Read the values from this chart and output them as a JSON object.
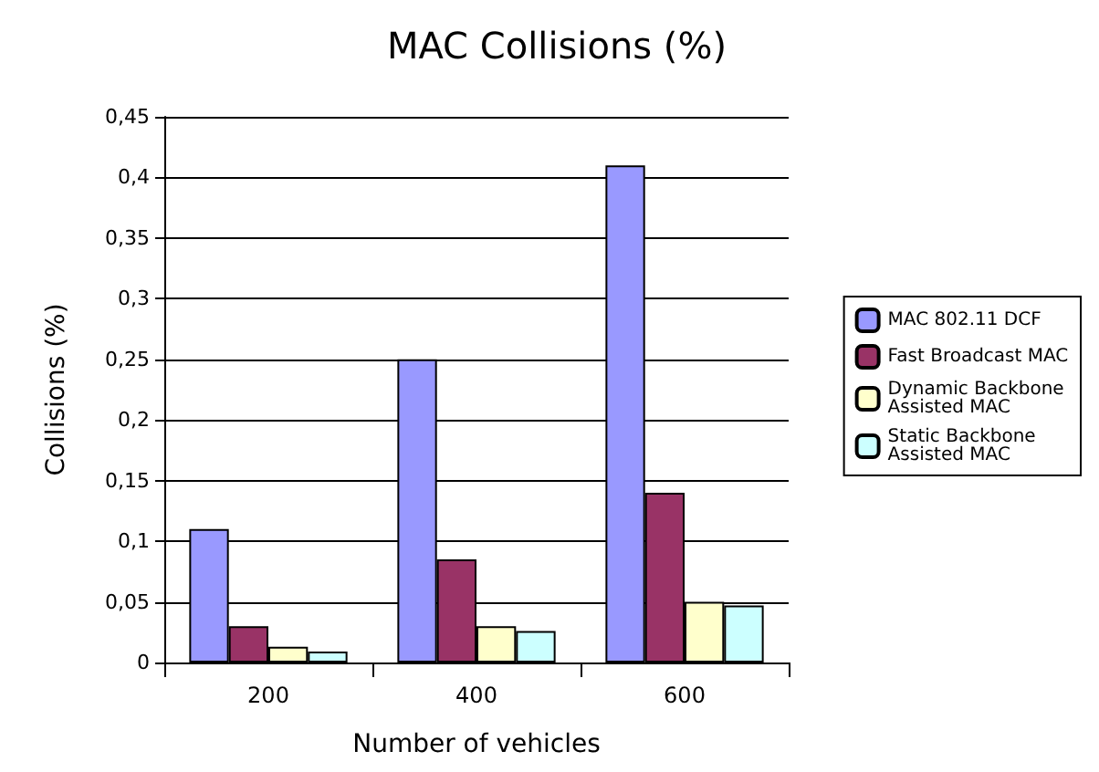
{
  "chart_data": {
    "type": "bar",
    "title": "MAC Collisions (%)",
    "xlabel": "Number of vehicles",
    "ylabel": "Collisions (%)",
    "categories": [
      "200",
      "400",
      "600"
    ],
    "series": [
      {
        "name": "MAC 802.11 DCF",
        "color": "#9999ff",
        "values": [
          0.11,
          0.25,
          0.41
        ]
      },
      {
        "name": "Fast Broadcast MAC",
        "color": "#993366",
        "values": [
          0.03,
          0.085,
          0.14
        ]
      },
      {
        "name": "Dynamic Backbone Assisted MAC",
        "color": "#ffffcc",
        "values": [
          0.013,
          0.03,
          0.05
        ]
      },
      {
        "name": "Static Backbone Assisted MAC",
        "color": "#ccffff",
        "values": [
          0.009,
          0.026,
          0.047
        ]
      }
    ],
    "ylim": [
      0,
      0.45
    ],
    "yticks": [
      {
        "value": 0,
        "label": "0"
      },
      {
        "value": 0.05,
        "label": "0,05"
      },
      {
        "value": 0.1,
        "label": "0,1"
      },
      {
        "value": 0.15,
        "label": "0,15"
      },
      {
        "value": 0.2,
        "label": "0,2"
      },
      {
        "value": 0.25,
        "label": "0,25"
      },
      {
        "value": 0.3,
        "label": "0,3"
      },
      {
        "value": 0.35,
        "label": "0,35"
      },
      {
        "value": 0.4,
        "label": "0,4"
      },
      {
        "value": 0.45,
        "label": "0,45"
      }
    ],
    "grid": "y",
    "legend": "right"
  }
}
